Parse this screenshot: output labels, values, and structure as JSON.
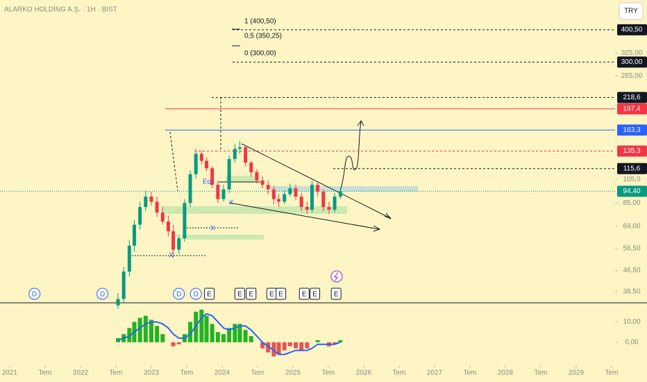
{
  "header": {
    "title": "ALARKO HOLDİNG A.Ş. · 1H · BIST",
    "currency": "TRY"
  },
  "chart_data": [
    {
      "type": "candlestick",
      "log_scale": true,
      "xlim": [
        2020.863,
        2029.55
      ],
      "xticks": [
        2021,
        {
          "value": 2021.5,
          "label": "Tem"
        },
        2022,
        {
          "value": 2022.5,
          "label": "Tem"
        },
        2023,
        {
          "value": 2023.5,
          "label": "Tem"
        },
        2024,
        {
          "value": 2024.5,
          "label": "Tem"
        },
        2025,
        {
          "value": 2025.5,
          "label": "Tem"
        },
        2026,
        {
          "value": 2026.5,
          "label": "Tem"
        },
        2027,
        {
          "value": 2027.5,
          "label": "Tem"
        },
        2028,
        {
          "value": 2028.5,
          "label": "Tem"
        },
        2029,
        {
          "value": 2029.5,
          "label": "Tem"
        }
      ],
      "ylim": [
        35,
        523
      ],
      "yticks": [
        {
          "value": 325,
          "label": "325,00"
        },
        {
          "value": 265,
          "label": "265,00"
        },
        {
          "value": 105,
          "label": "105,0"
        },
        {
          "value": 85,
          "label": "85,00"
        },
        {
          "value": 69,
          "label": "69,00"
        },
        {
          "value": 56.5,
          "label": "56,50"
        },
        {
          "value": 46.5,
          "label": "46,50"
        },
        {
          "value": 38.5,
          "label": "38,50"
        }
      ],
      "levels": [
        {
          "value": 400.5,
          "label": "400,50",
          "color": "#131722",
          "style": "dashed"
        },
        {
          "value": 300,
          "label": "300,00",
          "color": "#131722",
          "style": "dashed"
        },
        {
          "value": 218.6,
          "label": "218,6",
          "color": "#131722",
          "style": "dashed"
        },
        {
          "value": 197.4,
          "label": "197,4",
          "color": "#f23645",
          "style": "solid"
        },
        {
          "value": 163.3,
          "label": "163,3",
          "color": "#2962ff",
          "style": "solid"
        },
        {
          "value": 135.3,
          "label": "135,3",
          "color": "#f23645",
          "style": "dashed"
        },
        {
          "value": 115.6,
          "label": "115,6",
          "color": "#131722",
          "style": "dashed"
        },
        {
          "value": 94.4,
          "label": "94,40",
          "color": "#089981",
          "style": "dotted"
        }
      ],
      "fib_labels": [
        "1 (400,50)",
        "0,5 (350,25)",
        "0 (300,00)"
      ],
      "up_color": "#089981",
      "down_color": "#f23645",
      "candles": {
        "x": [
          2022.53,
          2022.61,
          2022.69,
          2022.76,
          2022.84,
          2022.92,
          2023.0,
          2023.08,
          2023.16,
          2023.24,
          2023.31,
          2023.39,
          2023.47,
          2023.55,
          2023.63,
          2023.71,
          2023.78,
          2023.86,
          2023.94,
          2024.02,
          2024.1,
          2024.18,
          2024.25,
          2024.33,
          2024.41,
          2024.49,
          2024.57,
          2024.65,
          2024.73,
          2024.8,
          2024.88,
          2024.96,
          2025.04,
          2025.12,
          2025.2,
          2025.27,
          2025.35,
          2025.43,
          2025.51,
          2025.59,
          2025.67
        ],
        "open": [
          34,
          36,
          46,
          58,
          70,
          82,
          90,
          86,
          78,
          72,
          66,
          56,
          62,
          85,
          110,
          132,
          124,
          116,
          100,
          88,
          96,
          126,
          138,
          140,
          122,
          112,
          104,
          100,
          96,
          88,
          86,
          92,
          97,
          90,
          82,
          80,
          100,
          94,
          82,
          80,
          90
        ],
        "high": [
          38,
          48,
          61,
          73,
          86,
          95,
          94,
          90,
          82,
          76,
          70,
          64,
          88,
          114,
          138,
          136,
          128,
          118,
          104,
          100,
          130,
          144,
          148,
          142,
          124,
          115,
          108,
          104,
          99,
          92,
          95,
          101,
          100,
          93,
          86,
          104,
          102,
          96,
          86,
          93,
          97
        ],
        "low": [
          33,
          35,
          44,
          55,
          67,
          79,
          83,
          75,
          70,
          63,
          52,
          54,
          60,
          82,
          106,
          120,
          113,
          97,
          85,
          86,
          93,
          122,
          132,
          118,
          108,
          101,
          97,
          92,
          84,
          82,
          84,
          90,
          87,
          79,
          77,
          78,
          90,
          79,
          77,
          78,
          88
        ],
        "close": [
          36,
          46,
          58,
          70,
          82,
          90,
          86,
          78,
          72,
          66,
          56,
          62,
          85,
          110,
          132,
          124,
          116,
          100,
          88,
          96,
          126,
          138,
          140,
          122,
          112,
          104,
          100,
          96,
          88,
          86,
          92,
          97,
          90,
          82,
          80,
          100,
          94,
          82,
          80,
          90,
          94.4
        ]
      },
      "events": {
        "labels": [
          "D",
          "D",
          "D",
          "D",
          "E",
          "E",
          "E",
          "E",
          "E",
          "E",
          "E",
          "E"
        ],
        "x": [
          2021.35,
          2022.31,
          2023.39,
          2023.63,
          2023.82,
          2024.25,
          2024.41,
          2024.7,
          2024.83,
          2025.16,
          2025.31,
          2025.61
        ]
      },
      "drawing_labels": [
        "Eq",
        "X",
        "X",
        "X"
      ]
    },
    {
      "type": "oscillator",
      "x": [
        2022.53,
        2022.61,
        2022.69,
        2022.76,
        2022.84,
        2022.92,
        2023.0,
        2023.08,
        2023.16,
        2023.24,
        2023.31,
        2023.39,
        2023.47,
        2023.55,
        2023.63,
        2023.71,
        2023.78,
        2023.86,
        2023.94,
        2024.02,
        2024.1,
        2024.18,
        2024.25,
        2024.33,
        2024.41,
        2024.49,
        2024.57,
        2024.65,
        2024.73,
        2024.8,
        2024.88,
        2024.96,
        2025.04,
        2025.12,
        2025.2,
        2025.27,
        2025.35,
        2025.43,
        2025.51,
        2025.59,
        2025.67
      ],
      "values": [
        2,
        4,
        7,
        10,
        12,
        13,
        11,
        8,
        4,
        0,
        -2,
        -1,
        4,
        10,
        15,
        16,
        13,
        9,
        5,
        4,
        7,
        9,
        9,
        6,
        3,
        0,
        -3,
        -5,
        -7,
        -6,
        -4,
        -2,
        -3,
        -4,
        -3,
        0,
        1,
        0,
        -2,
        -1,
        1
      ],
      "signal": [
        1,
        2,
        3,
        5,
        7,
        9,
        10,
        10,
        9,
        7,
        4,
        2,
        2,
        4,
        8,
        12,
        14,
        13,
        10,
        7,
        6,
        7,
        8,
        8,
        6,
        3,
        0,
        -2,
        -4,
        -6,
        -6,
        -5,
        -4,
        -4,
        -4,
        -3,
        -1,
        -1,
        -1,
        -1,
        0
      ],
      "ylim": [
        -11,
        18
      ],
      "yticks": [
        {
          "value": 10,
          "label": "10,00"
        },
        {
          "value": 0,
          "label": "0,00"
        }
      ],
      "pos_color": "#22b322",
      "neg_color": "#e05656",
      "line_color": "#2962ff"
    }
  ]
}
